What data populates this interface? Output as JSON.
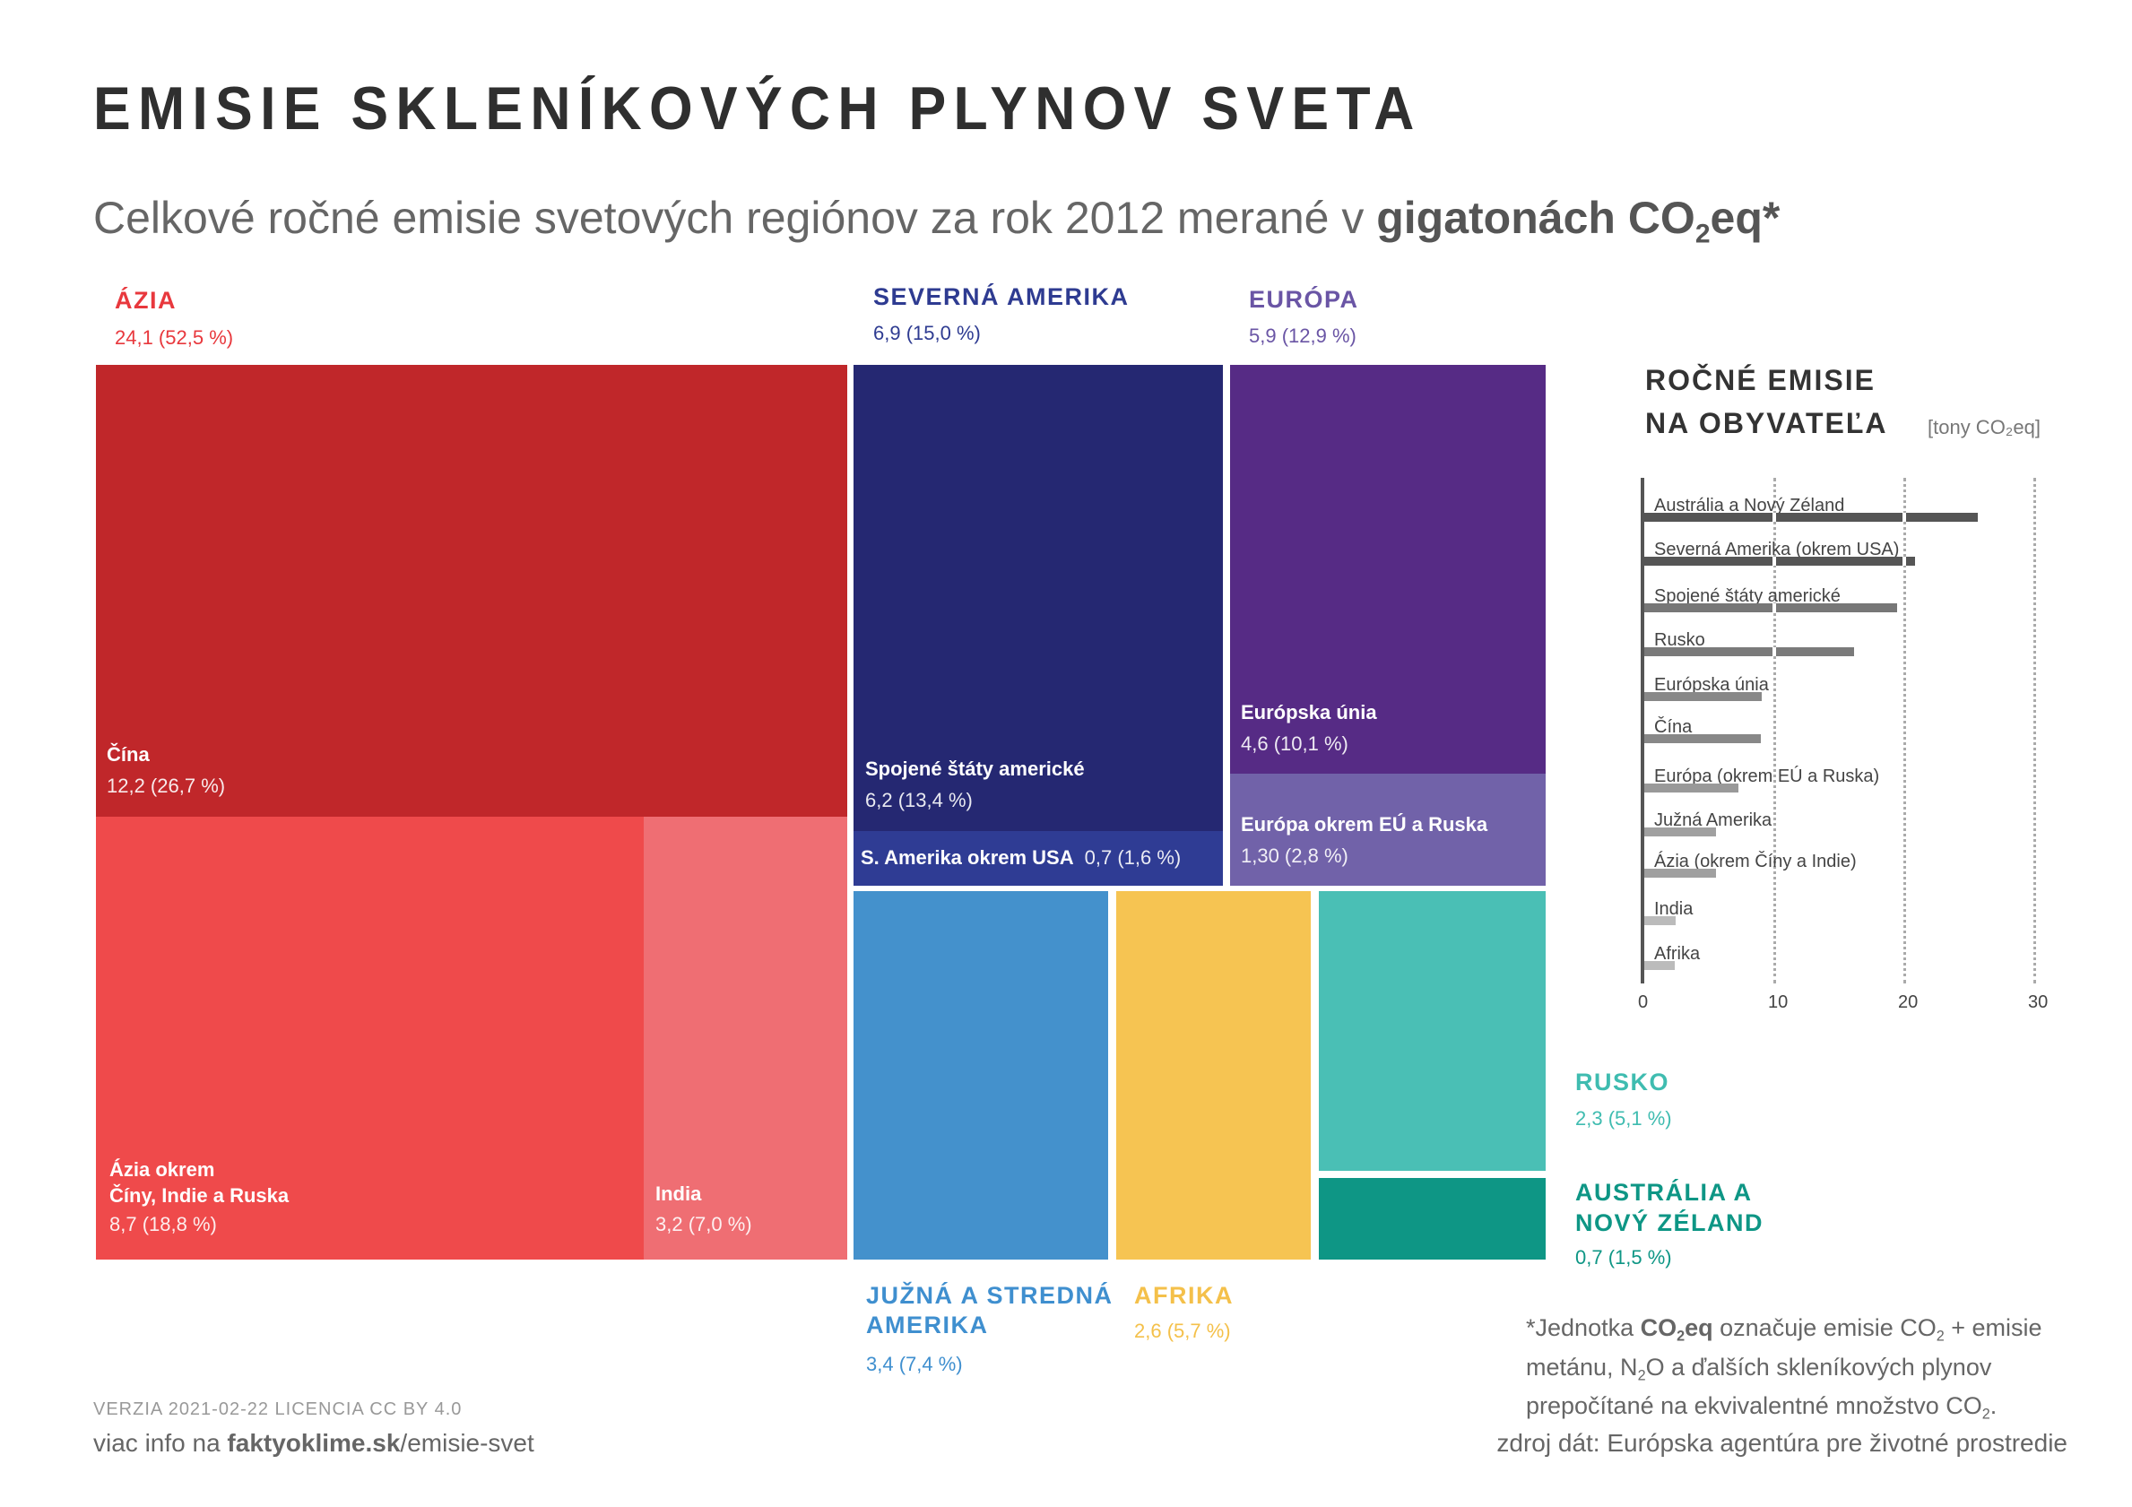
{
  "title": "EMISIE SKLENÍKOVÝCH PLYNOV SVETA",
  "subtitle": {
    "prefix": "Celkové ročné emisie svetových regiónov za rok 2012 merané v ",
    "bold1": "gigatonách CO",
    "sub": "2",
    "bold2": "eq*"
  },
  "regions": {
    "asia": {
      "label": "ÁZIA",
      "value": "24,1  (52,5 %)",
      "color": "#e8383d"
    },
    "north_america": {
      "label": "SEVERNÁ AMERIKA",
      "value": "6,9  (15,0 %)",
      "color": "#2e3b91"
    },
    "europe": {
      "label": "EURÓPA",
      "value": "5,9  (12,9 %)",
      "color": "#6a55a5"
    },
    "south_america": {
      "label1": "JUŽNÁ A STREDNÁ",
      "label2": "AMERIKA",
      "value": "3,4  (7,4 %)",
      "color": "#3f8fcf"
    },
    "africa": {
      "label": "AFRIKA",
      "value": "2,6  (5,7 %)",
      "color": "#f4c04a"
    },
    "russia": {
      "label": "RUSKO",
      "value": "2,3  (5,1 %)",
      "color": "#3fbcb0"
    },
    "australia": {
      "label1": "AUSTRÁLIA A",
      "label2": "NOVÝ ZÉLAND",
      "value": "0,7  (1,5 %)",
      "color": "#0e9685"
    }
  },
  "cells": {
    "china": {
      "label": "Čína",
      "value": "12,2  (26,7 %)",
      "color": "#c0272a"
    },
    "asia_other": {
      "label1": "Ázia okrem",
      "label2": "Číny, Indie a Ruska",
      "value": "8,7  (18,8 %)",
      "color": "#ef4a4b"
    },
    "india": {
      "label": "India",
      "value": "3,2  (7,0 %)",
      "color": "#ef6e73"
    },
    "usa": {
      "label": "Spojené štáty americké",
      "value": "6,2  (13,4 %)",
      "color": "#252872"
    },
    "na_other": {
      "label": "S. Amerika okrem USA",
      "value": "0,7  (1,6 %)",
      "color": "#2f3c94"
    },
    "eu": {
      "label": "Európska únia",
      "value": "4,6  (10,1 %)",
      "color": "#562b85"
    },
    "europe_other": {
      "label": "Európa okrem EÚ a Ruska",
      "value": "1,30  (2,8 %)",
      "color": "#7162a9"
    },
    "south_america": {
      "color": "#4491cc"
    },
    "africa": {
      "color": "#f6c452"
    },
    "russia": {
      "color": "#4abfb5"
    },
    "australia": {
      "color": "#0e9685"
    }
  },
  "chart_data": {
    "type": "bar",
    "title": "ROČNÉ EMISIE NA OBYVATEĽA",
    "title1": "ROČNÉ EMISIE",
    "title2": "NA OBYVATEĽA",
    "unit": "[tony CO₂eq]",
    "categories": [
      "Austrália a Nový Zéland",
      "Severná Amerika (okrem USA)",
      "Spojené štáty americké",
      "Rusko",
      "Európska únia",
      "Čína",
      "Európa (okrem EÚ a Ruska)",
      "Južná Amerika",
      "Ázia (okrem Číny a Indie)",
      "India",
      "Afrika"
    ],
    "values": [
      25.7,
      20.9,
      19.5,
      16.2,
      9.1,
      9.0,
      7.3,
      5.6,
      5.6,
      2.5,
      2.4
    ],
    "bar_colors": [
      "#555555",
      "#555555",
      "#777777",
      "#7a7a7a",
      "#888888",
      "#888888",
      "#999999",
      "#a0a0a0",
      "#a0a0a0",
      "#bbbbbb",
      "#bbbbbb"
    ],
    "xlim": [
      0,
      30
    ],
    "ticks": [
      "0",
      "10",
      "20",
      "30"
    ],
    "grid": true
  },
  "footnote": {
    "star": "*",
    "t1": "Jednotka ",
    "b1": "CO",
    "s1": "2",
    "b2": "eq",
    "t2": " označuje emisie CO",
    "s2": "2",
    "t3": " + emisie",
    "line2a": "metánu, N",
    "s3": "2",
    "line2b": "O a ďalších skleníkových plynov",
    "line3": "prepočítané na ekvivalentné množstvo CO",
    "s4": "2",
    "line3end": "."
  },
  "footer": {
    "version": "VERZIA 2021-02-22   LICENCIA CC BY 4.0",
    "info_prefix": "viac info na ",
    "info_domain": "faktyoklime.sk",
    "info_path": "/emisie-svet",
    "source": "zdroj dát: Európska agentúra pre životné prostredie"
  }
}
